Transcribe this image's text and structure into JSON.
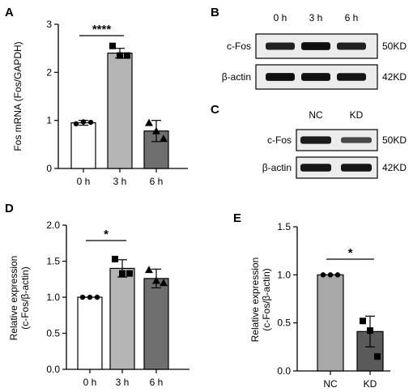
{
  "chart_data": [
    {
      "panel": "A",
      "type": "bar",
      "ylabel": "Fos mRNA (Fos/GAPDH)",
      "categories": [
        "0 h",
        "3 h",
        "6 h"
      ],
      "values": [
        0.95,
        2.4,
        0.78
      ],
      "errors": [
        0.05,
        0.1,
        0.22
      ],
      "points": [
        [
          0.93,
          0.97,
          0.96
        ],
        [
          2.55,
          2.35,
          2.35
        ],
        [
          0.95,
          0.78,
          0.62
        ]
      ],
      "bar_colors": [
        "#ffffff",
        "#b5b5b5",
        "#6f6f6f"
      ],
      "point_markers": [
        "circle",
        "square",
        "triangle"
      ],
      "yticks": [
        "0",
        "1",
        "2",
        "3"
      ],
      "ylim": [
        0,
        3
      ],
      "significance": [
        {
          "from": 0,
          "to": 1,
          "label": "****"
        }
      ]
    },
    {
      "panel": "D",
      "type": "bar",
      "ylabel": "Relative expression (c-Fos/β-actin)",
      "categories": [
        "0 h",
        "3 h",
        "6 h"
      ],
      "values": [
        1.0,
        1.4,
        1.26
      ],
      "errors": [
        0.0,
        0.12,
        0.13
      ],
      "points": [
        [
          1.0,
          1.0,
          1.0
        ],
        [
          1.53,
          1.33,
          1.33
        ],
        [
          1.38,
          1.23,
          1.2
        ]
      ],
      "bar_colors": [
        "#ffffff",
        "#b5b5b5",
        "#6f6f6f"
      ],
      "point_markers": [
        "circle",
        "square",
        "triangle"
      ],
      "yticks": [
        "0.0",
        "0.5",
        "1.0",
        "1.5",
        "2.0"
      ],
      "ylim": [
        0,
        2
      ],
      "significance": [
        {
          "from": 0,
          "to": 1,
          "label": "*"
        }
      ]
    },
    {
      "panel": "E",
      "type": "bar",
      "ylabel": "Relative expression (c-Fos/β-actin)",
      "categories": [
        "NC",
        "KD"
      ],
      "values": [
        1.0,
        0.41
      ],
      "errors": [
        0.0,
        0.16
      ],
      "points": [
        [
          1.0,
          1.0,
          1.0
        ],
        [
          0.52,
          0.42,
          0.15
        ]
      ],
      "bar_colors": [
        "#a8a8a8",
        "#5a5a5a"
      ],
      "point_markers": [
        "circle",
        "square"
      ],
      "yticks": [
        "0.0",
        "0.5",
        "1.0",
        "1.5"
      ],
      "ylim": [
        0,
        1.5
      ],
      "significance": [
        {
          "from": 0,
          "to": 1,
          "label": "*"
        }
      ]
    }
  ],
  "blots": [
    {
      "panel": "B",
      "lanes": [
        "0 h",
        "3 h",
        "6 h"
      ],
      "rows": [
        {
          "label": "c-Fos",
          "size": "50KD",
          "intensity": [
            0.8,
            0.95,
            0.8
          ]
        },
        {
          "label": "β-actin",
          "size": "42KD",
          "intensity": [
            0.95,
            0.95,
            0.9
          ]
        }
      ]
    },
    {
      "panel": "C",
      "lanes": [
        "NC",
        "KD"
      ],
      "rows": [
        {
          "label": "c-Fos",
          "size": "50KD",
          "intensity": [
            0.85,
            0.45
          ]
        },
        {
          "label": "β-actin",
          "size": "42KD",
          "intensity": [
            0.9,
            0.9
          ]
        }
      ]
    }
  ]
}
